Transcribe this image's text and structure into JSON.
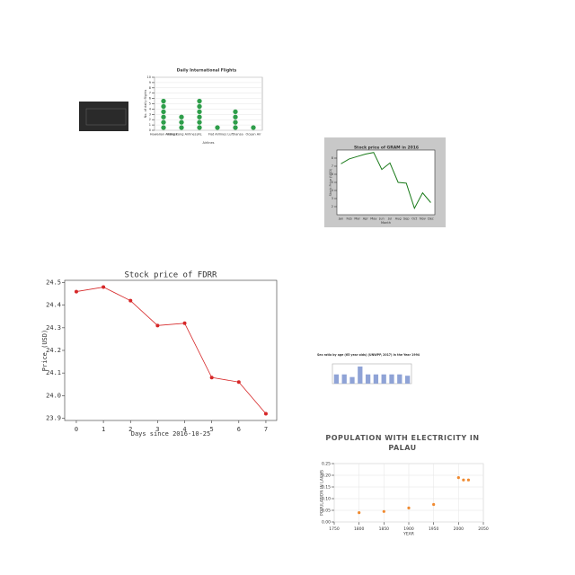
{
  "chart_data": [
    {
      "type": "dot",
      "title": "Daily International Flights",
      "xlabel": "Airlines",
      "ylabel": "No. of daily flights",
      "categories": [
        "Hawaiian Airlines",
        "Hong Kong Airlines",
        "JAL",
        "Fiat Airlines",
        "Lufthansa",
        "Ocean Air"
      ],
      "values": [
        6,
        3,
        6,
        1,
        4,
        1
      ],
      "color": "#2e9e4a",
      "ylim": [
        0,
        10
      ],
      "yticks": [
        0,
        1,
        2,
        3,
        4,
        5,
        6,
        7,
        8,
        9,
        10
      ],
      "grid": true
    },
    {
      "type": "line",
      "title": "Stock price of GRAM in 2016",
      "xlabel": "Month",
      "ylabel": "Stock Price (USD)",
      "categories": [
        "Jan",
        "Feb",
        "Mar",
        "Apr",
        "May",
        "Jun",
        "Jul",
        "Aug",
        "Sep",
        "Oct",
        "Nov",
        "Dec"
      ],
      "values": [
        7.3,
        7.9,
        8.2,
        8.5,
        8.7,
        6.6,
        7.4,
        5.0,
        4.9,
        1.8,
        3.7,
        2.5
      ],
      "color": "#1a7a1a",
      "ylim": [
        1,
        9
      ],
      "yticks": [
        2,
        3,
        4,
        5,
        6,
        7,
        8
      ],
      "grid": false
    },
    {
      "type": "line",
      "title": "Stock price of FDRR",
      "xlabel": "Days since 2016-10-25",
      "ylabel": "Price (USD)",
      "x": [
        0,
        1,
        2,
        3,
        4,
        5,
        6,
        7
      ],
      "values": [
        24.46,
        24.48,
        24.42,
        24.31,
        24.32,
        24.08,
        24.06,
        23.92
      ],
      "color": "#d62728",
      "markers": true,
      "xlim": [
        -0.43,
        7.4
      ],
      "xticks": [
        0,
        1,
        2,
        3,
        4,
        5,
        6,
        7
      ],
      "ylim": [
        23.89,
        24.51
      ],
      "yticks": [
        23.9,
        {
          "value": 24,
          "label": "24.0"
        },
        24.1,
        24.2,
        24.3,
        24.4,
        24.5
      ],
      "grid": false
    },
    {
      "type": "bar",
      "title": "Sex ratio by age (65 year olds) (UNWPP, 2017) in the Year 1994",
      "categories": [
        null,
        null,
        null,
        null,
        null,
        null,
        null,
        null,
        null,
        null
      ],
      "values": [
        0.7,
        0.7,
        0.5,
        1.3,
        0.7,
        0.7,
        0.7,
        0.7,
        0.7,
        0.6
      ],
      "color": "#8fa3d6",
      "ylim": [
        0,
        1.5
      ],
      "grid": false
    },
    {
      "type": "scatter",
      "title": "POPULATION WITH ELECTRICITY IN PALAU",
      "xlabel": "YEAR",
      "ylabel": "POPULATION IN LAKHS",
      "x": [
        1800,
        1850,
        1900,
        1950,
        2000,
        2010,
        2020
      ],
      "values": [
        0.04,
        0.045,
        0.06,
        0.075,
        0.19,
        0.18,
        0.18
      ],
      "color": "#f08a30",
      "xlim": [
        1750,
        2050
      ],
      "xticks": [
        1750,
        1800,
        1850,
        1900,
        1950,
        2000,
        2050
      ],
      "ylim": [
        0,
        0.25
      ],
      "yticks": [
        {
          "value": 0,
          "label": "0.00"
        },
        0.05,
        {
          "value": 0.1,
          "label": "0.10"
        },
        0.15,
        {
          "value": 0.2,
          "label": "0.20"
        },
        0.25
      ],
      "grid": true
    }
  ]
}
